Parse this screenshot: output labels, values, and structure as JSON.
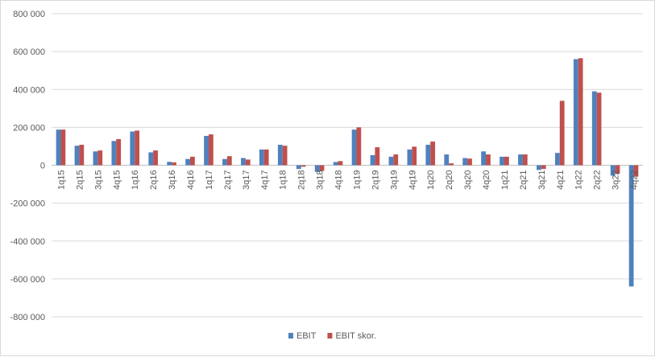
{
  "chart_data": {
    "type": "bar",
    "categories": [
      "1q15",
      "2q15",
      "3q15",
      "4q15",
      "1q16",
      "2q16",
      "3q16",
      "4q16",
      "1q17",
      "2q17",
      "3q17",
      "4q17",
      "1q18",
      "2q18",
      "3q18",
      "4q18",
      "1q19",
      "2q19",
      "3q19",
      "4q19",
      "1q20",
      "2q20",
      "3q20",
      "4q20",
      "1q21",
      "2q21",
      "3q21",
      "4q21",
      "1q22",
      "2q22",
      "3q22",
      "4q22"
    ],
    "series": [
      {
        "name": "EBIT",
        "color": "#4f81bd",
        "values": [
          188000,
          103000,
          73000,
          128000,
          178000,
          68000,
          18000,
          33000,
          155000,
          33000,
          38000,
          83000,
          108000,
          -20000,
          -35000,
          17000,
          188000,
          53000,
          45000,
          83000,
          108000,
          57000,
          38000,
          73000,
          45000,
          57000,
          -25000,
          65000,
          560000,
          390000,
          -55000,
          -640000
        ]
      },
      {
        "name": "EBIT skor.",
        "color": "#c0504d",
        "values": [
          188000,
          108000,
          78000,
          138000,
          183000,
          78000,
          15000,
          45000,
          163000,
          48000,
          30000,
          83000,
          103000,
          -8000,
          -30000,
          22000,
          200000,
          95000,
          57000,
          98000,
          125000,
          10000,
          35000,
          57000,
          45000,
          57000,
          -20000,
          340000,
          565000,
          383000,
          -45000,
          -60000
        ]
      }
    ],
    "yticks": [
      "800 000",
      "600 000",
      "400 000",
      "200 000",
      "0",
      "-200 000",
      "-400 000",
      "-600 000",
      "-800 000"
    ],
    "ylim": [
      -800000,
      800000
    ],
    "grid": true,
    "legend_position": "bottom"
  }
}
